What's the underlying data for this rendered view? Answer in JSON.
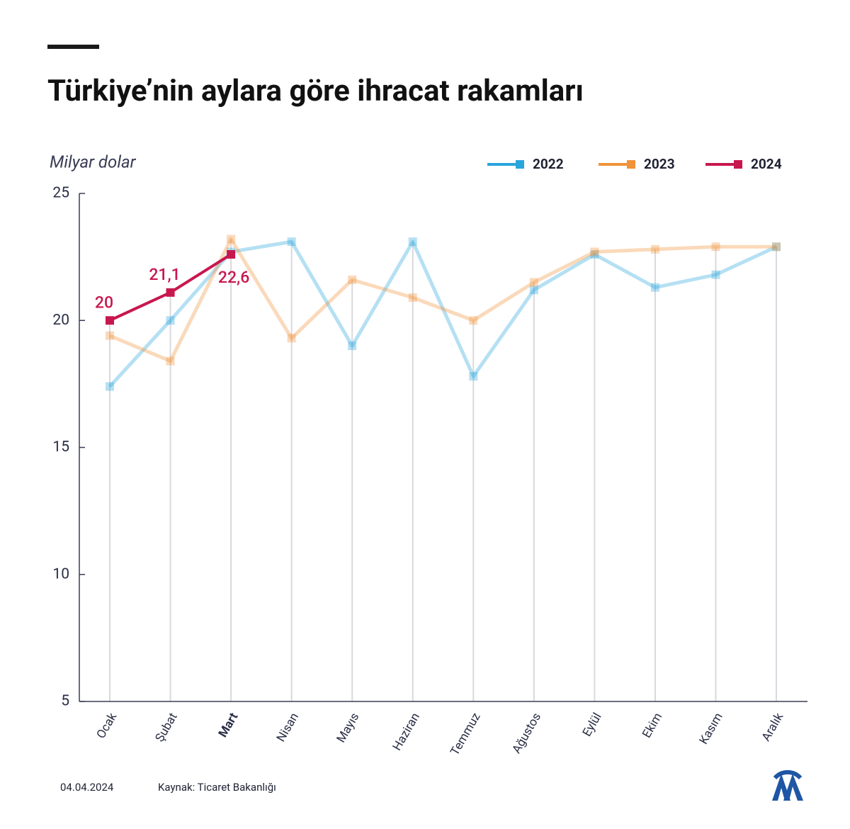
{
  "chart_data": {
    "type": "line",
    "title": "Türkiye’nin aylara göre ihracat rakamları",
    "y_axis_label": "Milyar dolar",
    "categories": [
      "Ocak",
      "Şubat",
      "Mart",
      "Nisan",
      "Mayıs",
      "Haziran",
      "Temmuz",
      "Ağustos",
      "Eylül",
      "Ekim",
      "Kasım",
      "Aralık"
    ],
    "highlight_category": 2,
    "series": [
      {
        "name": "2022",
        "color": "#2aa5dc",
        "values": [
          17.4,
          20.0,
          22.7,
          23.1,
          19.0,
          23.1,
          17.8,
          21.2,
          22.6,
          21.3,
          21.8,
          22.9
        ]
      },
      {
        "name": "2023",
        "color": "#f0933a",
        "values": [
          19.4,
          18.4,
          23.2,
          19.3,
          21.6,
          20.9,
          20.0,
          21.5,
          22.7,
          22.8,
          22.9,
          22.9
        ]
      },
      {
        "name": "2024",
        "color": "#c8174f",
        "values": [
          20,
          21.1,
          22.6,
          null,
          null,
          null,
          null,
          null,
          null,
          null,
          null,
          null
        ],
        "value_labels": [
          "20",
          "21,1",
          "22,6",
          null,
          null,
          null,
          null,
          null,
          null,
          null,
          null,
          null
        ]
      }
    ],
    "ylim": [
      5,
      25
    ],
    "yticks": [
      5,
      10,
      15,
      20,
      25
    ],
    "date": "04.04.2024",
    "source": "Kaynak: Ticaret Bakanlığı"
  }
}
